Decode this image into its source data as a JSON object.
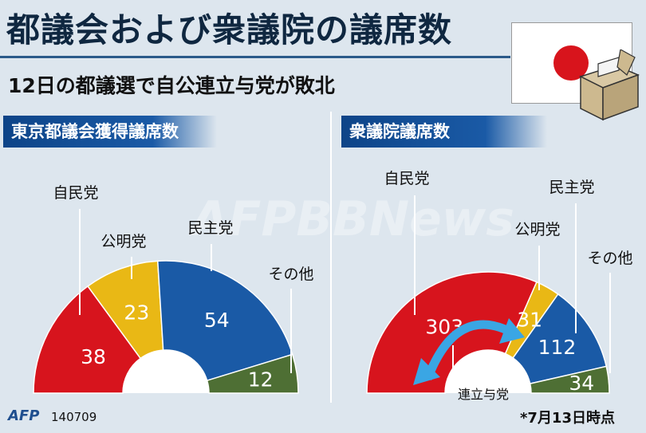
{
  "title": "都議会および衆議院の議席数",
  "subtitle": "12日の都議選で自公連立与党が敗北",
  "panels": {
    "left_title": "東京都議会獲得議席数",
    "right_title": "衆議院議席数"
  },
  "footer": {
    "logo": "AFP",
    "code": "140709",
    "note": "*7月13日時点"
  },
  "watermark": "AFPBBNews",
  "colors": {
    "ldp": "#d7141d",
    "komeito": "#e9b815",
    "dpj": "#1a5aa6",
    "others": "#4e6f34",
    "arrow": "#3aa6e4"
  },
  "chart_data": [
    {
      "type": "pie",
      "title": "東京都議会獲得議席数",
      "categories": [
        "自民党",
        "公明党",
        "民主党",
        "その他"
      ],
      "values": [
        38,
        23,
        54,
        12
      ]
    },
    {
      "type": "pie",
      "title": "衆議院議席数",
      "categories": [
        "自民党",
        "公明党",
        "民主党",
        "その他"
      ],
      "values": [
        303,
        31,
        112,
        34
      ],
      "annotation": "連立与党"
    }
  ]
}
